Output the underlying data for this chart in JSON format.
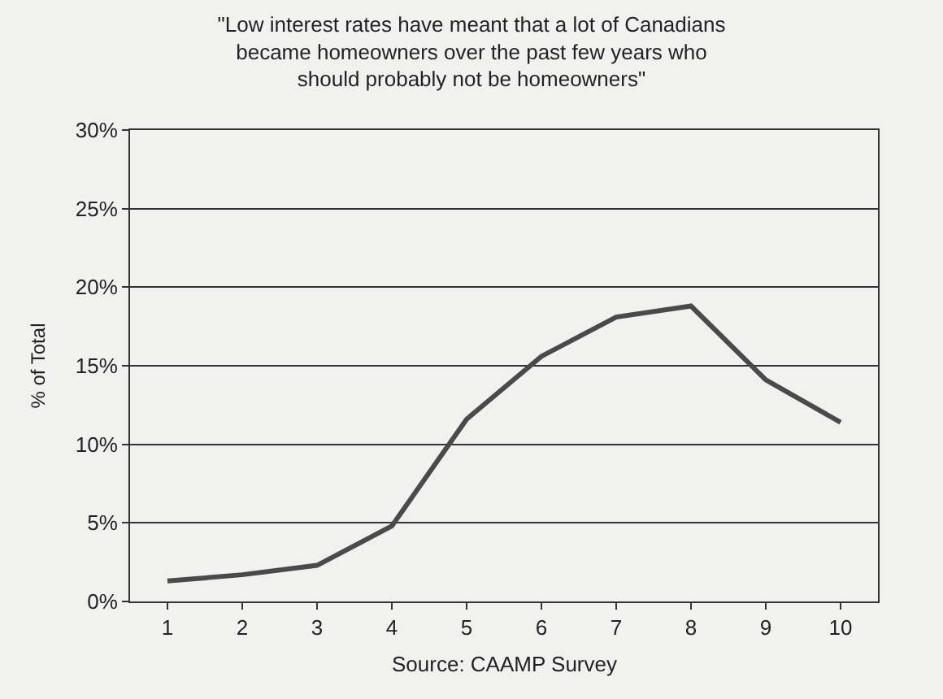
{
  "chart_data": {
    "type": "line",
    "title": "\"Low interest rates have meant that a lot of Canadians\nbecame homeowners over the past few years who\nshould probably not be homeowners\"",
    "ylabel": "% of Total",
    "annotations": [
      "Source: CAAMP Survey"
    ],
    "categories": [
      "1",
      "2",
      "3",
      "4",
      "5",
      "6",
      "7",
      "8",
      "9",
      "10"
    ],
    "series": [
      {
        "color": "#4a4a4a",
        "values": [
          1.3,
          1.7,
          2.3,
          4.8,
          11.6,
          15.6,
          18.1,
          18.8,
          14.1,
          11.4
        ]
      }
    ],
    "ylim": [
      0,
      30
    ],
    "yticks": [
      {
        "value": 0,
        "label": "0%"
      },
      {
        "value": 5,
        "label": "5%"
      },
      {
        "value": 10,
        "label": "10%"
      },
      {
        "value": 15,
        "label": "15%"
      },
      {
        "value": 20,
        "label": "20%"
      },
      {
        "value": 25,
        "label": "25%"
      },
      {
        "value": 30,
        "label": "30%"
      }
    ],
    "grid": "y",
    "marker": "none",
    "line_style": "solid"
  }
}
